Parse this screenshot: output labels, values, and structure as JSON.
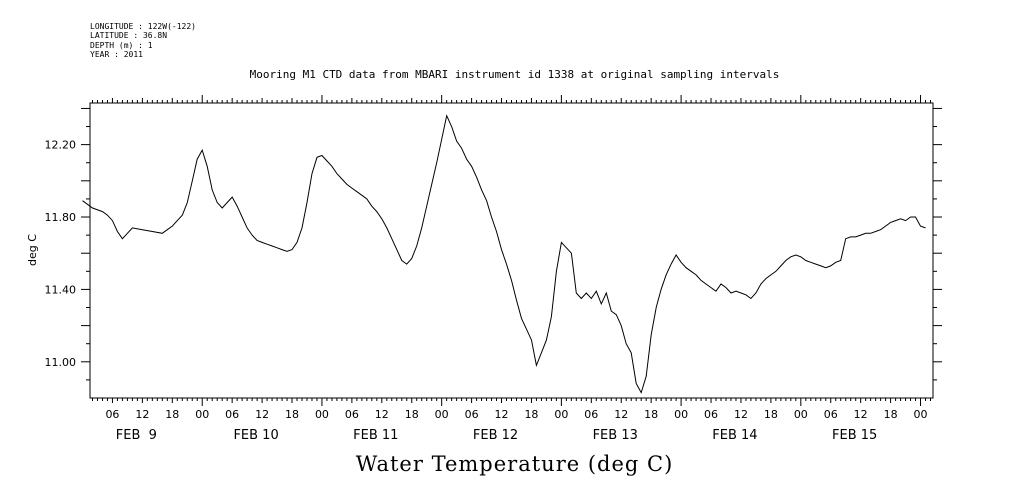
{
  "header": {
    "longitude": "LONGITUDE : 122W(-122)",
    "latitude": "LATITUDE : 36.8N",
    "depth": "DEPTH (m) : 1",
    "year": "YEAR : 2011"
  },
  "chart_data": {
    "type": "line",
    "title": "Mooring M1 CTD data from MBARI instrument id 1338 at original sampling intervals",
    "xlabel": "Water Temperature (deg C)",
    "ylabel": "deg C",
    "ylim": [
      10.8,
      12.43
    ],
    "xlim_hours": [
      1.5,
      170.5
    ],
    "yticks": [
      11.0,
      11.4,
      11.8,
      12.2
    ],
    "ytick_labels": [
      "11.00",
      "11.40",
      "11.80",
      "12.20"
    ],
    "hour_labels": [
      "06",
      "12",
      "18",
      "00"
    ],
    "day_labels": [
      "FEB  9",
      "FEB 10",
      "FEB 11",
      "FEB 12",
      "FEB 13",
      "FEB 14",
      "FEB 15"
    ],
    "grid": false,
    "series": [
      {
        "points": [
          [
            0,
            11.89
          ],
          [
            2,
            11.85
          ],
          [
            4,
            11.83
          ],
          [
            5,
            11.81
          ],
          [
            6,
            11.78
          ],
          [
            7,
            11.72
          ],
          [
            8,
            11.68
          ],
          [
            9,
            11.71
          ],
          [
            10,
            11.74
          ],
          [
            12,
            11.73
          ],
          [
            14,
            11.72
          ],
          [
            16,
            11.71
          ],
          [
            17,
            11.73
          ],
          [
            18,
            11.75
          ],
          [
            19,
            11.78
          ],
          [
            20,
            11.81
          ],
          [
            21,
            11.88
          ],
          [
            22,
            12.0
          ],
          [
            23,
            12.12
          ],
          [
            24,
            12.17
          ],
          [
            25,
            12.08
          ],
          [
            26,
            11.95
          ],
          [
            27,
            11.88
          ],
          [
            28,
            11.85
          ],
          [
            29,
            11.88
          ],
          [
            30,
            11.91
          ],
          [
            31,
            11.86
          ],
          [
            32,
            11.8
          ],
          [
            33,
            11.74
          ],
          [
            34,
            11.7
          ],
          [
            35,
            11.67
          ],
          [
            36,
            11.66
          ],
          [
            37,
            11.65
          ],
          [
            38,
            11.64
          ],
          [
            39,
            11.63
          ],
          [
            40,
            11.62
          ],
          [
            41,
            11.61
          ],
          [
            42,
            11.62
          ],
          [
            43,
            11.66
          ],
          [
            44,
            11.74
          ],
          [
            45,
            11.88
          ],
          [
            46,
            12.04
          ],
          [
            47,
            12.13
          ],
          [
            48,
            12.14
          ],
          [
            49,
            12.11
          ],
          [
            50,
            12.08
          ],
          [
            51,
            12.04
          ],
          [
            52,
            12.01
          ],
          [
            53,
            11.98
          ],
          [
            54,
            11.96
          ],
          [
            55,
            11.94
          ],
          [
            56,
            11.92
          ],
          [
            57,
            11.9
          ],
          [
            58,
            11.86
          ],
          [
            59,
            11.83
          ],
          [
            60,
            11.79
          ],
          [
            61,
            11.74
          ],
          [
            62,
            11.68
          ],
          [
            63,
            11.62
          ],
          [
            64,
            11.56
          ],
          [
            65,
            11.54
          ],
          [
            66,
            11.57
          ],
          [
            67,
            11.64
          ],
          [
            68,
            11.74
          ],
          [
            69,
            11.86
          ],
          [
            70,
            11.98
          ],
          [
            71,
            12.1
          ],
          [
            72,
            12.23
          ],
          [
            73,
            12.36
          ],
          [
            74,
            12.3
          ],
          [
            75,
            12.22
          ],
          [
            76,
            12.18
          ],
          [
            77,
            12.12
          ],
          [
            78,
            12.08
          ],
          [
            79,
            12.02
          ],
          [
            80,
            11.95
          ],
          [
            81,
            11.89
          ],
          [
            82,
            11.8
          ],
          [
            83,
            11.72
          ],
          [
            84,
            11.62
          ],
          [
            85,
            11.54
          ],
          [
            86,
            11.45
          ],
          [
            87,
            11.34
          ],
          [
            88,
            11.24
          ],
          [
            89,
            11.18
          ],
          [
            90,
            11.12
          ],
          [
            91,
            10.98
          ],
          [
            92,
            11.05
          ],
          [
            93,
            11.12
          ],
          [
            94,
            11.25
          ],
          [
            95,
            11.5
          ],
          [
            96,
            11.66
          ],
          [
            97,
            11.63
          ],
          [
            98,
            11.6
          ],
          [
            99,
            11.38
          ],
          [
            100,
            11.35
          ],
          [
            101,
            11.38
          ],
          [
            102,
            11.35
          ],
          [
            103,
            11.39
          ],
          [
            104,
            11.32
          ],
          [
            105,
            11.38
          ],
          [
            106,
            11.28
          ],
          [
            107,
            11.26
          ],
          [
            108,
            11.2
          ],
          [
            109,
            11.1
          ],
          [
            110,
            11.05
          ],
          [
            111,
            10.88
          ],
          [
            112,
            10.83
          ],
          [
            113,
            10.92
          ],
          [
            114,
            11.15
          ],
          [
            115,
            11.3
          ],
          [
            116,
            11.4
          ],
          [
            117,
            11.48
          ],
          [
            118,
            11.54
          ],
          [
            119,
            11.59
          ],
          [
            120,
            11.55
          ],
          [
            121,
            11.52
          ],
          [
            122,
            11.5
          ],
          [
            123,
            11.48
          ],
          [
            124,
            11.45
          ],
          [
            125,
            11.43
          ],
          [
            126,
            11.41
          ],
          [
            127,
            11.39
          ],
          [
            128,
            11.43
          ],
          [
            129,
            11.41
          ],
          [
            130,
            11.38
          ],
          [
            131,
            11.39
          ],
          [
            132,
            11.38
          ],
          [
            133,
            11.37
          ],
          [
            134,
            11.35
          ],
          [
            135,
            11.38
          ],
          [
            136,
            11.43
          ],
          [
            137,
            11.46
          ],
          [
            138,
            11.48
          ],
          [
            139,
            11.5
          ],
          [
            140,
            11.53
          ],
          [
            141,
            11.56
          ],
          [
            142,
            11.58
          ],
          [
            143,
            11.59
          ],
          [
            144,
            11.58
          ],
          [
            145,
            11.56
          ],
          [
            146,
            11.55
          ],
          [
            147,
            11.54
          ],
          [
            148,
            11.53
          ],
          [
            149,
            11.52
          ],
          [
            150,
            11.53
          ],
          [
            151,
            11.55
          ],
          [
            152,
            11.56
          ],
          [
            153,
            11.68
          ],
          [
            154,
            11.69
          ],
          [
            155,
            11.69
          ],
          [
            156,
            11.7
          ],
          [
            157,
            11.71
          ],
          [
            158,
            11.71
          ],
          [
            159,
            11.72
          ],
          [
            160,
            11.73
          ],
          [
            161,
            11.75
          ],
          [
            162,
            11.77
          ],
          [
            163,
            11.78
          ],
          [
            164,
            11.79
          ],
          [
            165,
            11.78
          ],
          [
            166,
            11.8
          ],
          [
            167,
            11.8
          ],
          [
            168,
            11.75
          ],
          [
            169,
            11.74
          ]
        ]
      }
    ]
  }
}
